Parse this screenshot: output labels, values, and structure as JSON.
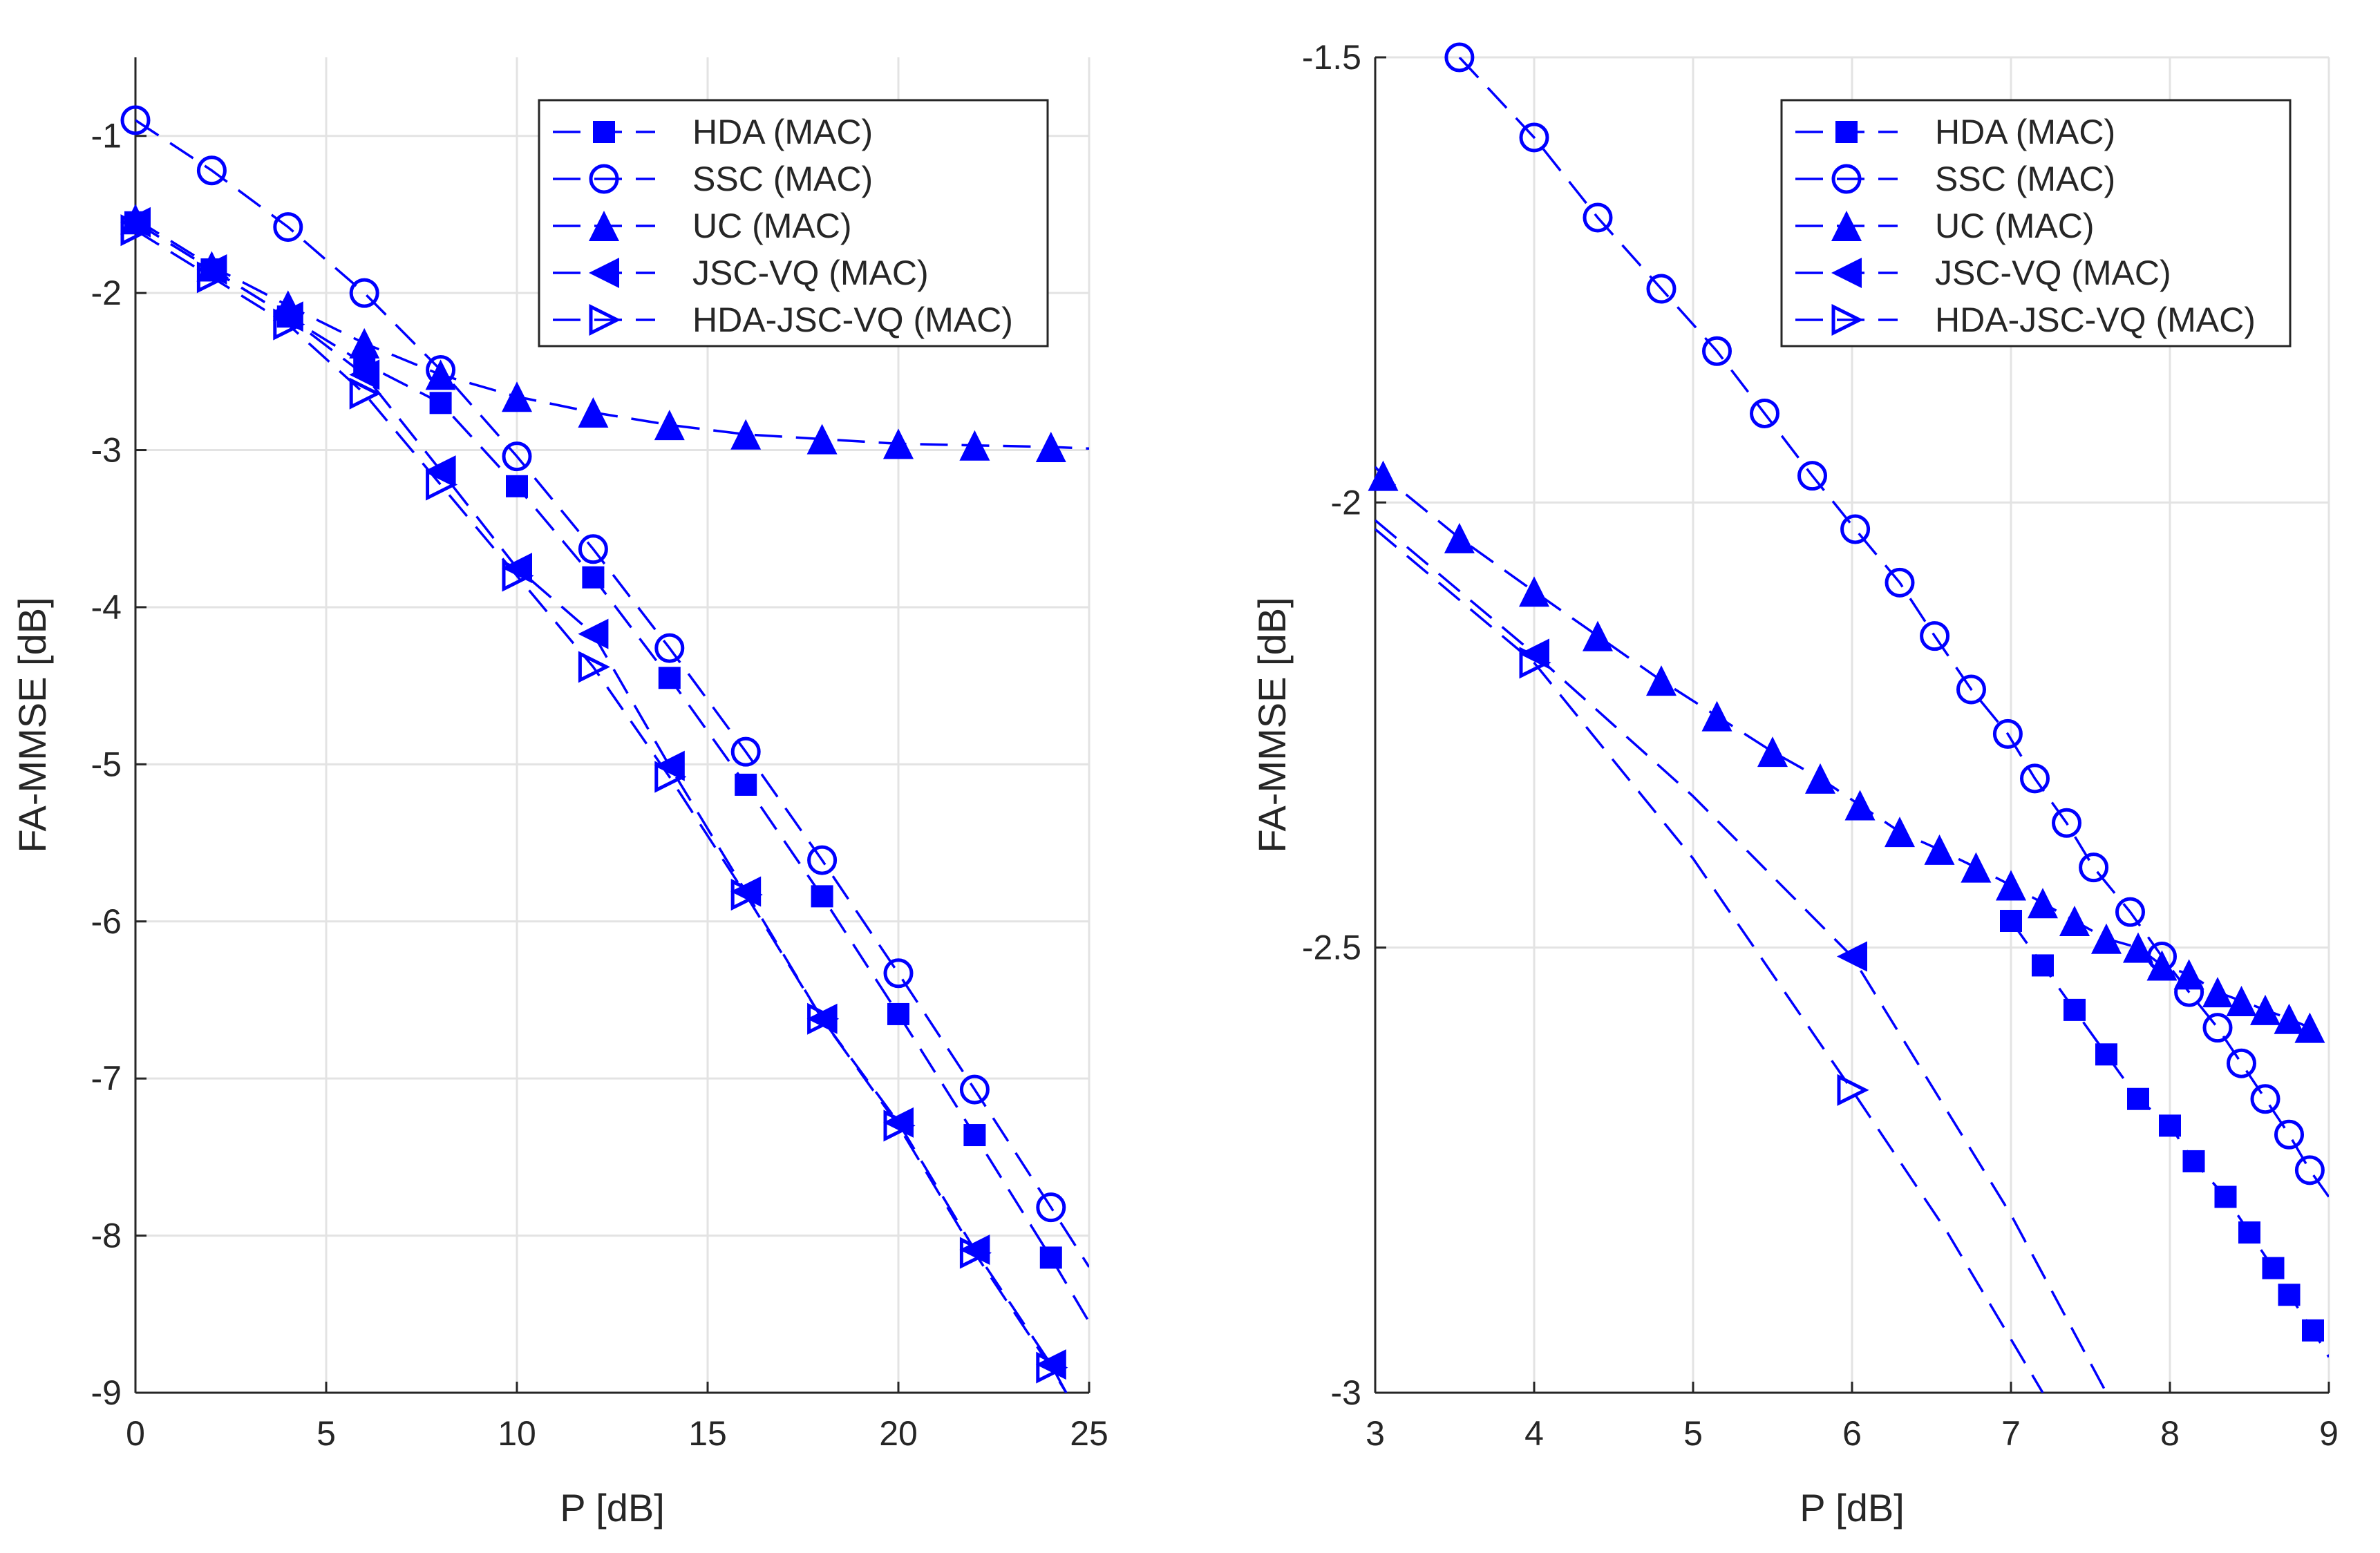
{
  "colors": {
    "series": "#0000ff",
    "grid": "#e3e3e3",
    "axis": "#262626",
    "background": "#ffffff"
  },
  "chart_data": [
    {
      "type": "line",
      "xlabel": "P [dB]",
      "ylabel": "FA-MMSE [dB]",
      "xlim": [
        0,
        25
      ],
      "ylim": [
        -9,
        -0.5
      ],
      "xticks": [
        0,
        5,
        10,
        15,
        20,
        25
      ],
      "yticks": [
        -9,
        -8,
        -7,
        -6,
        -5,
        -4,
        -3,
        -2,
        -1
      ],
      "xtick_labels": [
        "0",
        "5",
        "10",
        "15",
        "20",
        "25"
      ],
      "ytick_labels": [
        "-9",
        "-8",
        "-7",
        "-6",
        "-5",
        "-4",
        "-3",
        "-2",
        "-1"
      ],
      "grid": true,
      "legend_position": "top-right",
      "series": [
        {
          "name": "HDA (MAC)",
          "marker": "square",
          "x": [
            0,
            2,
            4,
            6,
            8,
            10,
            12,
            14,
            16,
            18,
            20,
            22,
            24
          ],
          "y": [
            -1.55,
            -1.85,
            -2.15,
            -2.45,
            -2.7,
            -3.23,
            -3.81,
            -4.45,
            -5.13,
            -5.84,
            -6.59,
            -7.36,
            -8.14
          ],
          "line_x": [
            0,
            2,
            4,
            6,
            8,
            10,
            12,
            14,
            16,
            18,
            20,
            22,
            24,
            25
          ],
          "line_y": [
            -1.55,
            -1.85,
            -2.15,
            -2.45,
            -2.7,
            -3.23,
            -3.81,
            -4.45,
            -5.13,
            -5.84,
            -6.59,
            -7.36,
            -8.14,
            -8.55
          ]
        },
        {
          "name": "SSC (MAC)",
          "marker": "circle",
          "x": [
            0,
            2,
            4,
            6,
            8,
            10,
            12,
            14,
            16,
            18,
            20,
            22,
            24
          ],
          "y": [
            -0.9,
            -1.22,
            -1.58,
            -2.0,
            -2.49,
            -3.04,
            -3.63,
            -4.26,
            -4.92,
            -5.61,
            -6.33,
            -7.07,
            -7.82
          ],
          "line_x": [
            0,
            2,
            4,
            6,
            8,
            10,
            12,
            14,
            16,
            18,
            20,
            22,
            24,
            25
          ],
          "line_y": [
            -0.9,
            -1.22,
            -1.58,
            -2.0,
            -2.49,
            -3.04,
            -3.63,
            -4.26,
            -4.92,
            -5.61,
            -6.33,
            -7.07,
            -7.82,
            -8.2
          ]
        },
        {
          "name": "UC (MAC)",
          "marker": "triangle-up",
          "x": [
            0,
            2,
            4,
            6,
            8,
            10,
            12,
            14,
            16,
            18,
            20,
            22,
            24
          ],
          "y": [
            -1.53,
            -1.83,
            -2.08,
            -2.32,
            -2.52,
            -2.66,
            -2.76,
            -2.84,
            -2.9,
            -2.93,
            -2.96,
            -2.97,
            -2.98
          ],
          "line_x": [
            0,
            2,
            4,
            6,
            8,
            10,
            12,
            14,
            16,
            18,
            20,
            22,
            24,
            25
          ],
          "line_y": [
            -1.53,
            -1.83,
            -2.08,
            -2.32,
            -2.52,
            -2.66,
            -2.76,
            -2.84,
            -2.9,
            -2.93,
            -2.96,
            -2.97,
            -2.98,
            -2.99
          ]
        },
        {
          "name": "JSC-VQ (MAC)",
          "marker": "triangle-left",
          "x": [
            0,
            2,
            4,
            6,
            8,
            10,
            12,
            14,
            16,
            18,
            20,
            22,
            24
          ],
          "y": [
            -1.55,
            -1.85,
            -2.15,
            -2.52,
            -3.13,
            -3.75,
            -4.17,
            -5.01,
            -5.81,
            -6.62,
            -7.28,
            -8.09,
            -8.82
          ],
          "line_x": [
            0,
            2,
            4,
            6,
            8,
            10,
            12,
            14,
            16,
            18,
            20,
            22,
            24,
            24.4
          ],
          "line_y": [
            -1.55,
            -1.85,
            -2.15,
            -2.52,
            -3.13,
            -3.75,
            -4.17,
            -5.01,
            -5.81,
            -6.62,
            -7.28,
            -8.09,
            -8.82,
            -9.0
          ]
        },
        {
          "name": "HDA-JSC-VQ (MAC)",
          "marker": "triangle-right-open",
          "x": [
            0,
            2,
            4,
            6,
            8,
            10,
            12,
            14,
            16,
            18,
            20,
            22,
            24
          ],
          "y": [
            -1.6,
            -1.9,
            -2.2,
            -2.64,
            -3.22,
            -3.8,
            -4.38,
            -5.08,
            -5.83,
            -6.62,
            -7.3,
            -8.11,
            -8.84
          ],
          "line_x": [
            0,
            2,
            4,
            6,
            8,
            10,
            12,
            14,
            16,
            18,
            20,
            22,
            24,
            24.4
          ],
          "line_y": [
            -1.6,
            -1.9,
            -2.2,
            -2.64,
            -3.22,
            -3.8,
            -4.38,
            -5.08,
            -5.83,
            -6.62,
            -7.3,
            -8.11,
            -8.84,
            -9.0
          ]
        }
      ]
    },
    {
      "type": "line",
      "xlabel": "P [dB]",
      "ylabel": "FA-MMSE [dB]",
      "xlim": [
        3,
        9
      ],
      "ylim": [
        -3,
        -1.5
      ],
      "xticks": [
        3,
        4,
        5,
        6,
        7,
        8,
        9
      ],
      "yticks": [
        -3,
        -2.5,
        -2,
        -1.5
      ],
      "xtick_labels": [
        "3",
        "4",
        "5",
        "6",
        "7",
        "8",
        "9"
      ],
      "ytick_labels": [
        "-3",
        "-2.5",
        "-2",
        "-1.5"
      ],
      "grid": true,
      "legend_position": "top-right",
      "series": [
        {
          "name": "HDA (MAC)",
          "marker": "square",
          "x": [
            7.0,
            7.2,
            7.4,
            7.6,
            7.8,
            8.0,
            8.15,
            8.35,
            8.5,
            8.65,
            8.75,
            8.9
          ],
          "y": [
            -2.47,
            -2.52,
            -2.57,
            -2.62,
            -2.67,
            -2.7,
            -2.74,
            -2.78,
            -2.82,
            -2.86,
            -2.89,
            -2.93
          ],
          "line_x": [
            7.0,
            7.2,
            7.4,
            7.6,
            7.8,
            8.0,
            8.15,
            8.35,
            8.5,
            8.65,
            8.75,
            8.9,
            9.0
          ],
          "line_y": [
            -2.47,
            -2.52,
            -2.57,
            -2.62,
            -2.67,
            -2.7,
            -2.74,
            -2.78,
            -2.82,
            -2.86,
            -2.89,
            -2.93,
            -2.96
          ]
        },
        {
          "name": "SSC (MAC)",
          "marker": "circle",
          "x": [
            3.53,
            4.0,
            4.4,
            4.8,
            5.15,
            5.45,
            5.75,
            6.02,
            6.3,
            6.52,
            6.75,
            6.98,
            7.15,
            7.35,
            7.52,
            7.75,
            7.95,
            8.12,
            8.3,
            8.45,
            8.6,
            8.75,
            8.88
          ],
          "y": [
            -1.5,
            -1.59,
            -1.68,
            -1.76,
            -1.83,
            -1.9,
            -1.97,
            -2.03,
            -2.09,
            -2.15,
            -2.21,
            -2.26,
            -2.31,
            -2.36,
            -2.41,
            -2.46,
            -2.51,
            -2.55,
            -2.59,
            -2.63,
            -2.67,
            -2.71,
            -2.75
          ],
          "line_x": [
            3.53,
            4.0,
            4.4,
            4.8,
            5.15,
            5.45,
            5.75,
            6.02,
            6.3,
            6.52,
            6.75,
            6.98,
            7.15,
            7.35,
            7.52,
            7.75,
            7.95,
            8.12,
            8.3,
            8.45,
            8.6,
            8.75,
            8.88,
            9.0
          ],
          "line_y": [
            -1.5,
            -1.59,
            -1.68,
            -1.76,
            -1.83,
            -1.9,
            -1.97,
            -2.03,
            -2.09,
            -2.15,
            -2.21,
            -2.26,
            -2.31,
            -2.36,
            -2.41,
            -2.46,
            -2.51,
            -2.55,
            -2.59,
            -2.63,
            -2.67,
            -2.71,
            -2.75,
            -2.78
          ]
        },
        {
          "name": "UC (MAC)",
          "marker": "triangle-up",
          "x": [
            3.05,
            3.53,
            4.0,
            4.4,
            4.8,
            5.15,
            5.5,
            5.8,
            6.05,
            6.3,
            6.55,
            6.78,
            7.0,
            7.2,
            7.4,
            7.6,
            7.8,
            7.95,
            8.12,
            8.3,
            8.45,
            8.6,
            8.75,
            8.88
          ],
          "y": [
            -1.97,
            -2.04,
            -2.1,
            -2.15,
            -2.2,
            -2.24,
            -2.28,
            -2.31,
            -2.34,
            -2.37,
            -2.39,
            -2.41,
            -2.43,
            -2.45,
            -2.47,
            -2.49,
            -2.5,
            -2.52,
            -2.53,
            -2.55,
            -2.56,
            -2.57,
            -2.58,
            -2.59
          ],
          "line_x": [
            3.0,
            3.05,
            3.53,
            4.0,
            4.4,
            4.8,
            5.15,
            5.5,
            5.8,
            6.05,
            6.3,
            6.55,
            6.78,
            7.0,
            7.2,
            7.4,
            7.6,
            7.8,
            7.95,
            8.12,
            8.3,
            8.45,
            8.6,
            8.75,
            8.88,
            9.0
          ],
          "line_y": [
            -1.96,
            -1.97,
            -2.04,
            -2.1,
            -2.15,
            -2.2,
            -2.24,
            -2.28,
            -2.31,
            -2.34,
            -2.37,
            -2.39,
            -2.41,
            -2.43,
            -2.45,
            -2.47,
            -2.49,
            -2.5,
            -2.52,
            -2.53,
            -2.55,
            -2.56,
            -2.57,
            -2.58,
            -2.59,
            -2.6
          ]
        },
        {
          "name": "JSC-VQ (MAC)",
          "marker": "triangle-left",
          "x": [
            4.0,
            6.0
          ],
          "y": [
            -2.17,
            -2.51
          ],
          "line_x": [
            3.0,
            4.0,
            5.0,
            6.0,
            7.0,
            7.6
          ],
          "line_y": [
            -2.02,
            -2.17,
            -2.33,
            -2.51,
            -2.8,
            -3.0
          ]
        },
        {
          "name": "HDA-JSC-VQ (MAC)",
          "marker": "triangle-right-open",
          "x": [
            4.0,
            6.0
          ],
          "y": [
            -2.18,
            -2.66
          ],
          "line_x": [
            3.0,
            4.0,
            5.0,
            6.0,
            6.6,
            7.2
          ],
          "line_y": [
            -2.03,
            -2.18,
            -2.4,
            -2.66,
            -2.82,
            -3.0
          ]
        }
      ]
    }
  ]
}
